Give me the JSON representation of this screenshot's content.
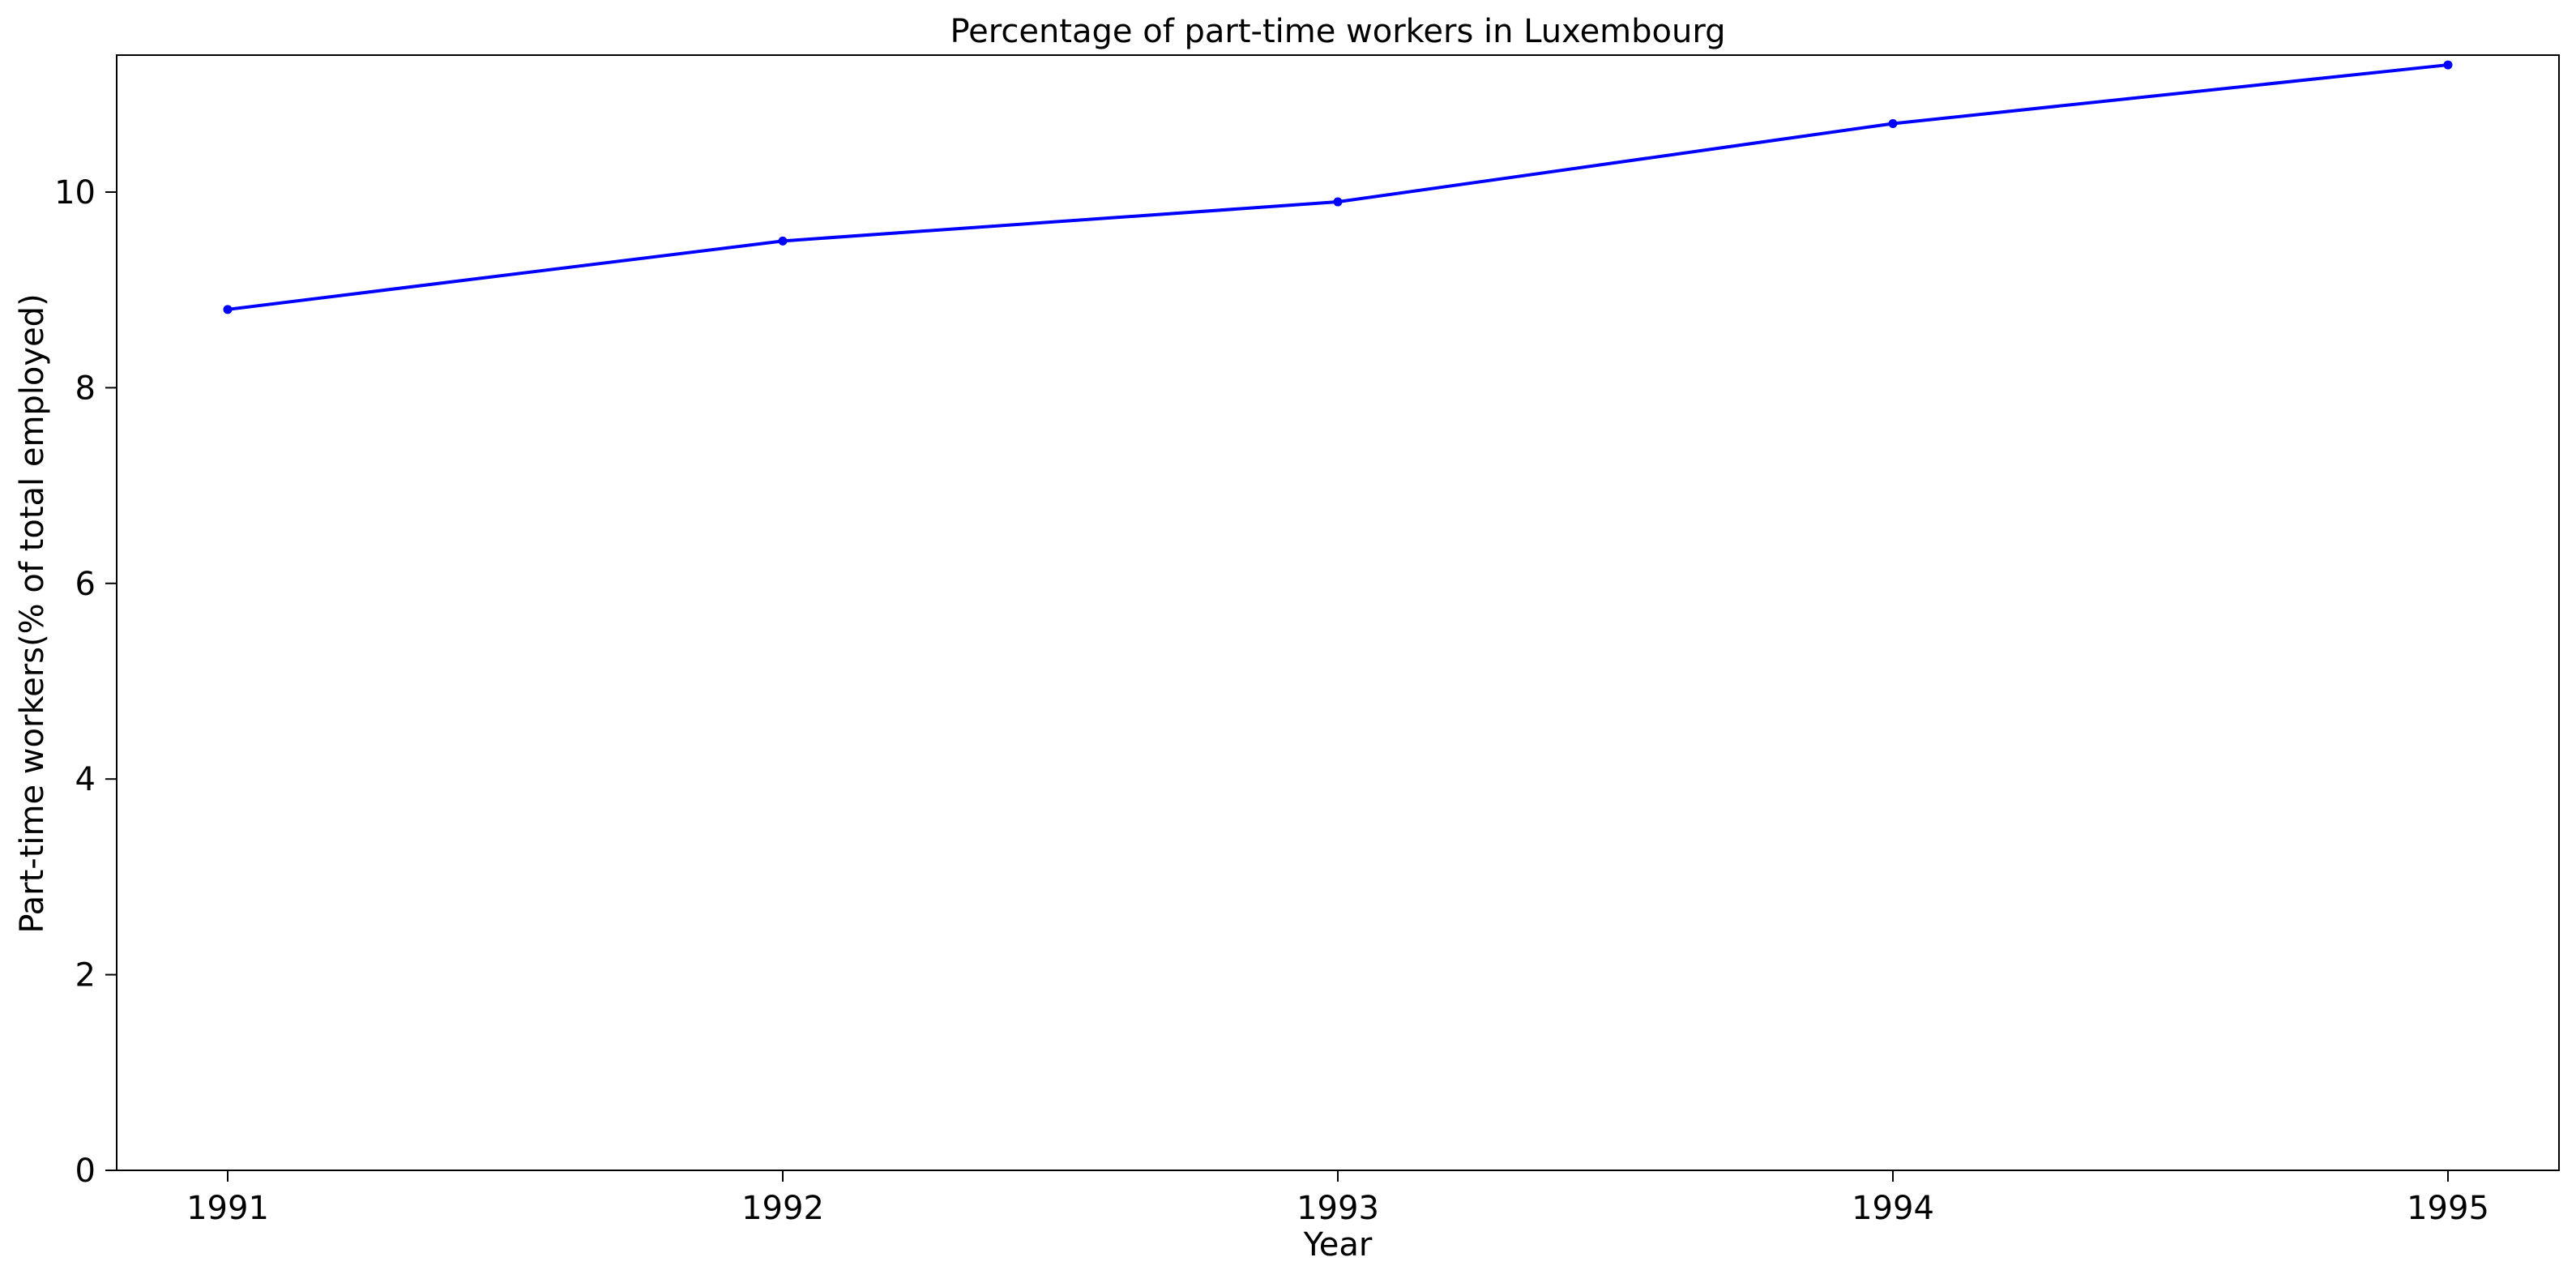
{
  "chart_data": {
    "type": "line",
    "title": "Percentage of part-time workers in Luxembourg",
    "xlabel": "Year",
    "ylabel": "Part-time workers(% of total employed)",
    "x": [
      "1991",
      "1992",
      "1993",
      "1994",
      "1995"
    ],
    "series": [
      {
        "values": [
          8.8,
          9.5,
          9.9,
          10.7,
          11.3
        ],
        "color": "#0000ff",
        "marker": "circle"
      }
    ],
    "xlim": [
      -0.2,
      4.2
    ],
    "ylim": [
      0,
      11.4
    ],
    "yticks": [
      0,
      2,
      4,
      6,
      8,
      10
    ],
    "grid": false,
    "legend": "none"
  }
}
